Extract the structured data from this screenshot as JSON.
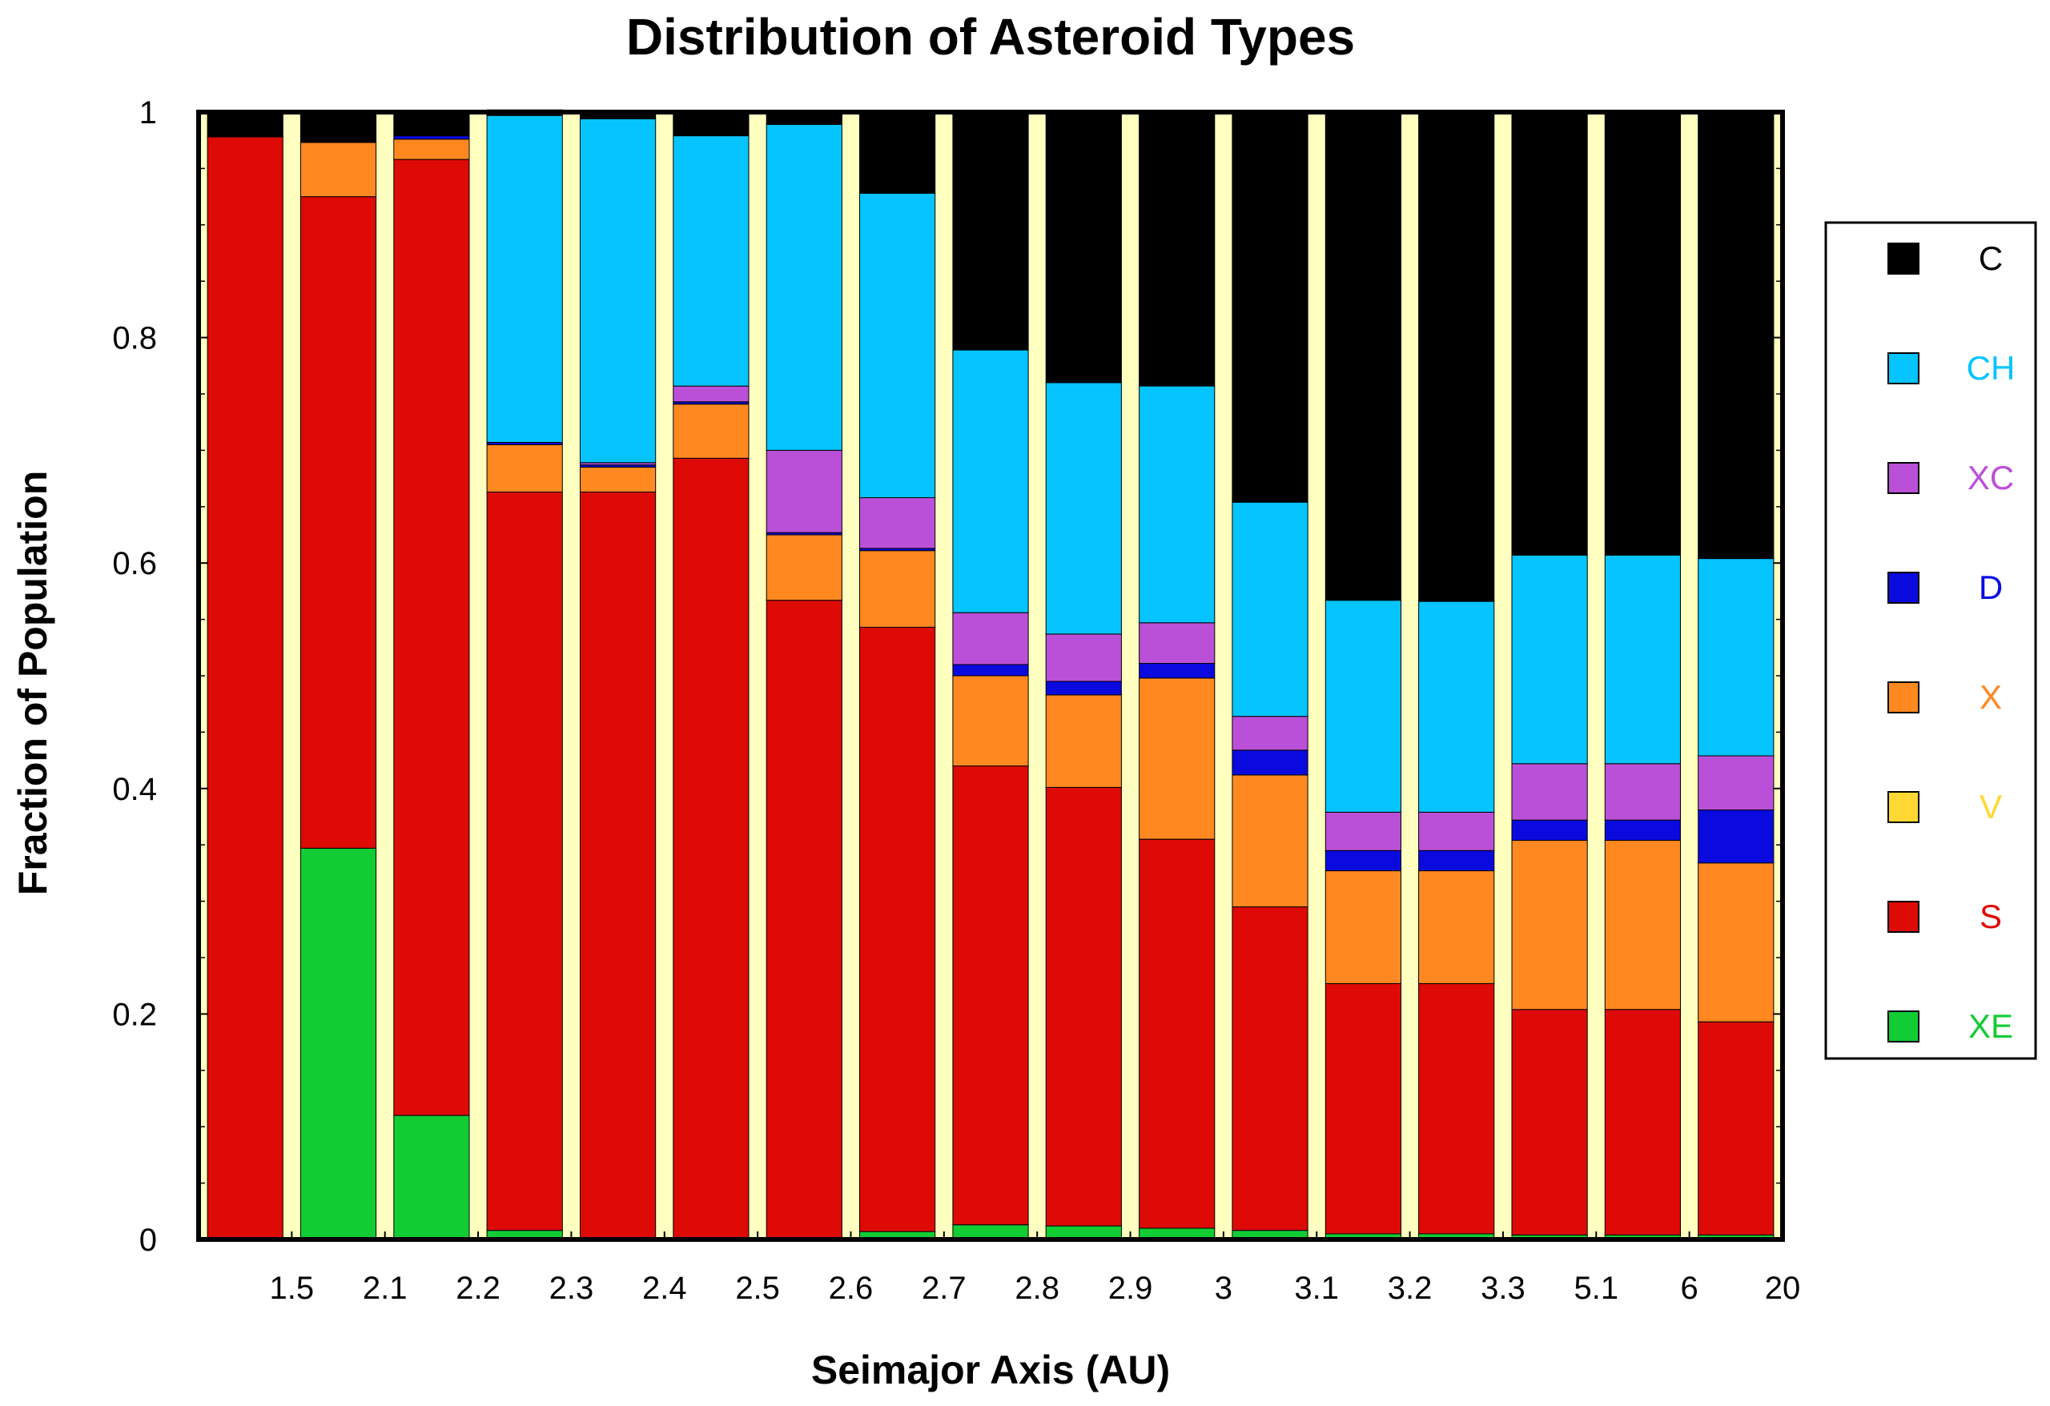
{
  "chart_data": {
    "type": "bar",
    "stacked": true,
    "title": "Distribution of Asteroid Types",
    "xlabel": "Seimajor Axis (AU)",
    "ylabel": "Fraction of Population",
    "ylim": [
      0,
      1
    ],
    "y_ticks": [
      "0",
      "0.2",
      "0.4",
      "0.6",
      "0.8",
      "1"
    ],
    "x_tick_labels": [
      "1.5",
      "2.1",
      "2.2",
      "2.3",
      "2.4",
      "2.5",
      "2.6",
      "2.7",
      "2.8",
      "2.9",
      "3",
      "3.1",
      "3.2",
      "3.3",
      "5.1",
      "6",
      "20"
    ],
    "grid": false,
    "legend_position": "right",
    "background_color": "#ffffc0",
    "series": [
      {
        "name": "XE",
        "color": "#12cc33",
        "values": [
          0,
          0.347,
          0.11,
          0.008,
          0,
          0,
          0,
          0.007,
          0.013,
          0.012,
          0.01,
          0.008,
          0.005,
          0.005,
          0.004,
          0.004,
          0.004
        ]
      },
      {
        "name": "S",
        "color": "#dd0a06",
        "values": [
          0.978,
          0.578,
          0.848,
          0.655,
          0.663,
          0.693,
          0.567,
          0.536,
          0.407,
          0.389,
          0.345,
          0.287,
          0.222,
          0.222,
          0.2,
          0.2,
          0.189
        ]
      },
      {
        "name": "V",
        "color": "#ffd833",
        "values": [
          0,
          0,
          0,
          0,
          0,
          0,
          0,
          0,
          0,
          0,
          0,
          0,
          0,
          0,
          0,
          0,
          0
        ]
      },
      {
        "name": "X",
        "color": "#ff8820",
        "values": [
          0,
          0.048,
          0.018,
          0.042,
          0.022,
          0.048,
          0.058,
          0.068,
          0.08,
          0.082,
          0.143,
          0.117,
          0.1,
          0.1,
          0.15,
          0.15,
          0.141
        ]
      },
      {
        "name": "D",
        "color": "#0a0adf",
        "values": [
          0,
          0,
          0.003,
          0.002,
          0.002,
          0.002,
          0.002,
          0.002,
          0.01,
          0.012,
          0.013,
          0.022,
          0.018,
          0.018,
          0.018,
          0.018,
          0.047
        ]
      },
      {
        "name": "XC",
        "color": "#bb50d8",
        "values": [
          0,
          0,
          0,
          0,
          0.002,
          0.014,
          0.073,
          0.045,
          0.046,
          0.042,
          0.036,
          0.03,
          0.034,
          0.034,
          0.05,
          0.05,
          0.048
        ]
      },
      {
        "name": "CH",
        "color": "#05c4ff",
        "values": [
          0,
          0,
          0,
          0.29,
          0.305,
          0.222,
          0.289,
          0.27,
          0.233,
          0.223,
          0.21,
          0.19,
          0.188,
          0.187,
          0.185,
          0.185,
          0.175
        ]
      },
      {
        "name": "C",
        "color": "#000000",
        "values": [
          0.022,
          0.027,
          0.021,
          0.005,
          0.006,
          0.021,
          0.011,
          0.072,
          0.211,
          0.24,
          0.243,
          0.346,
          0.433,
          0.434,
          0.393,
          0.393,
          0.396
        ]
      }
    ]
  }
}
